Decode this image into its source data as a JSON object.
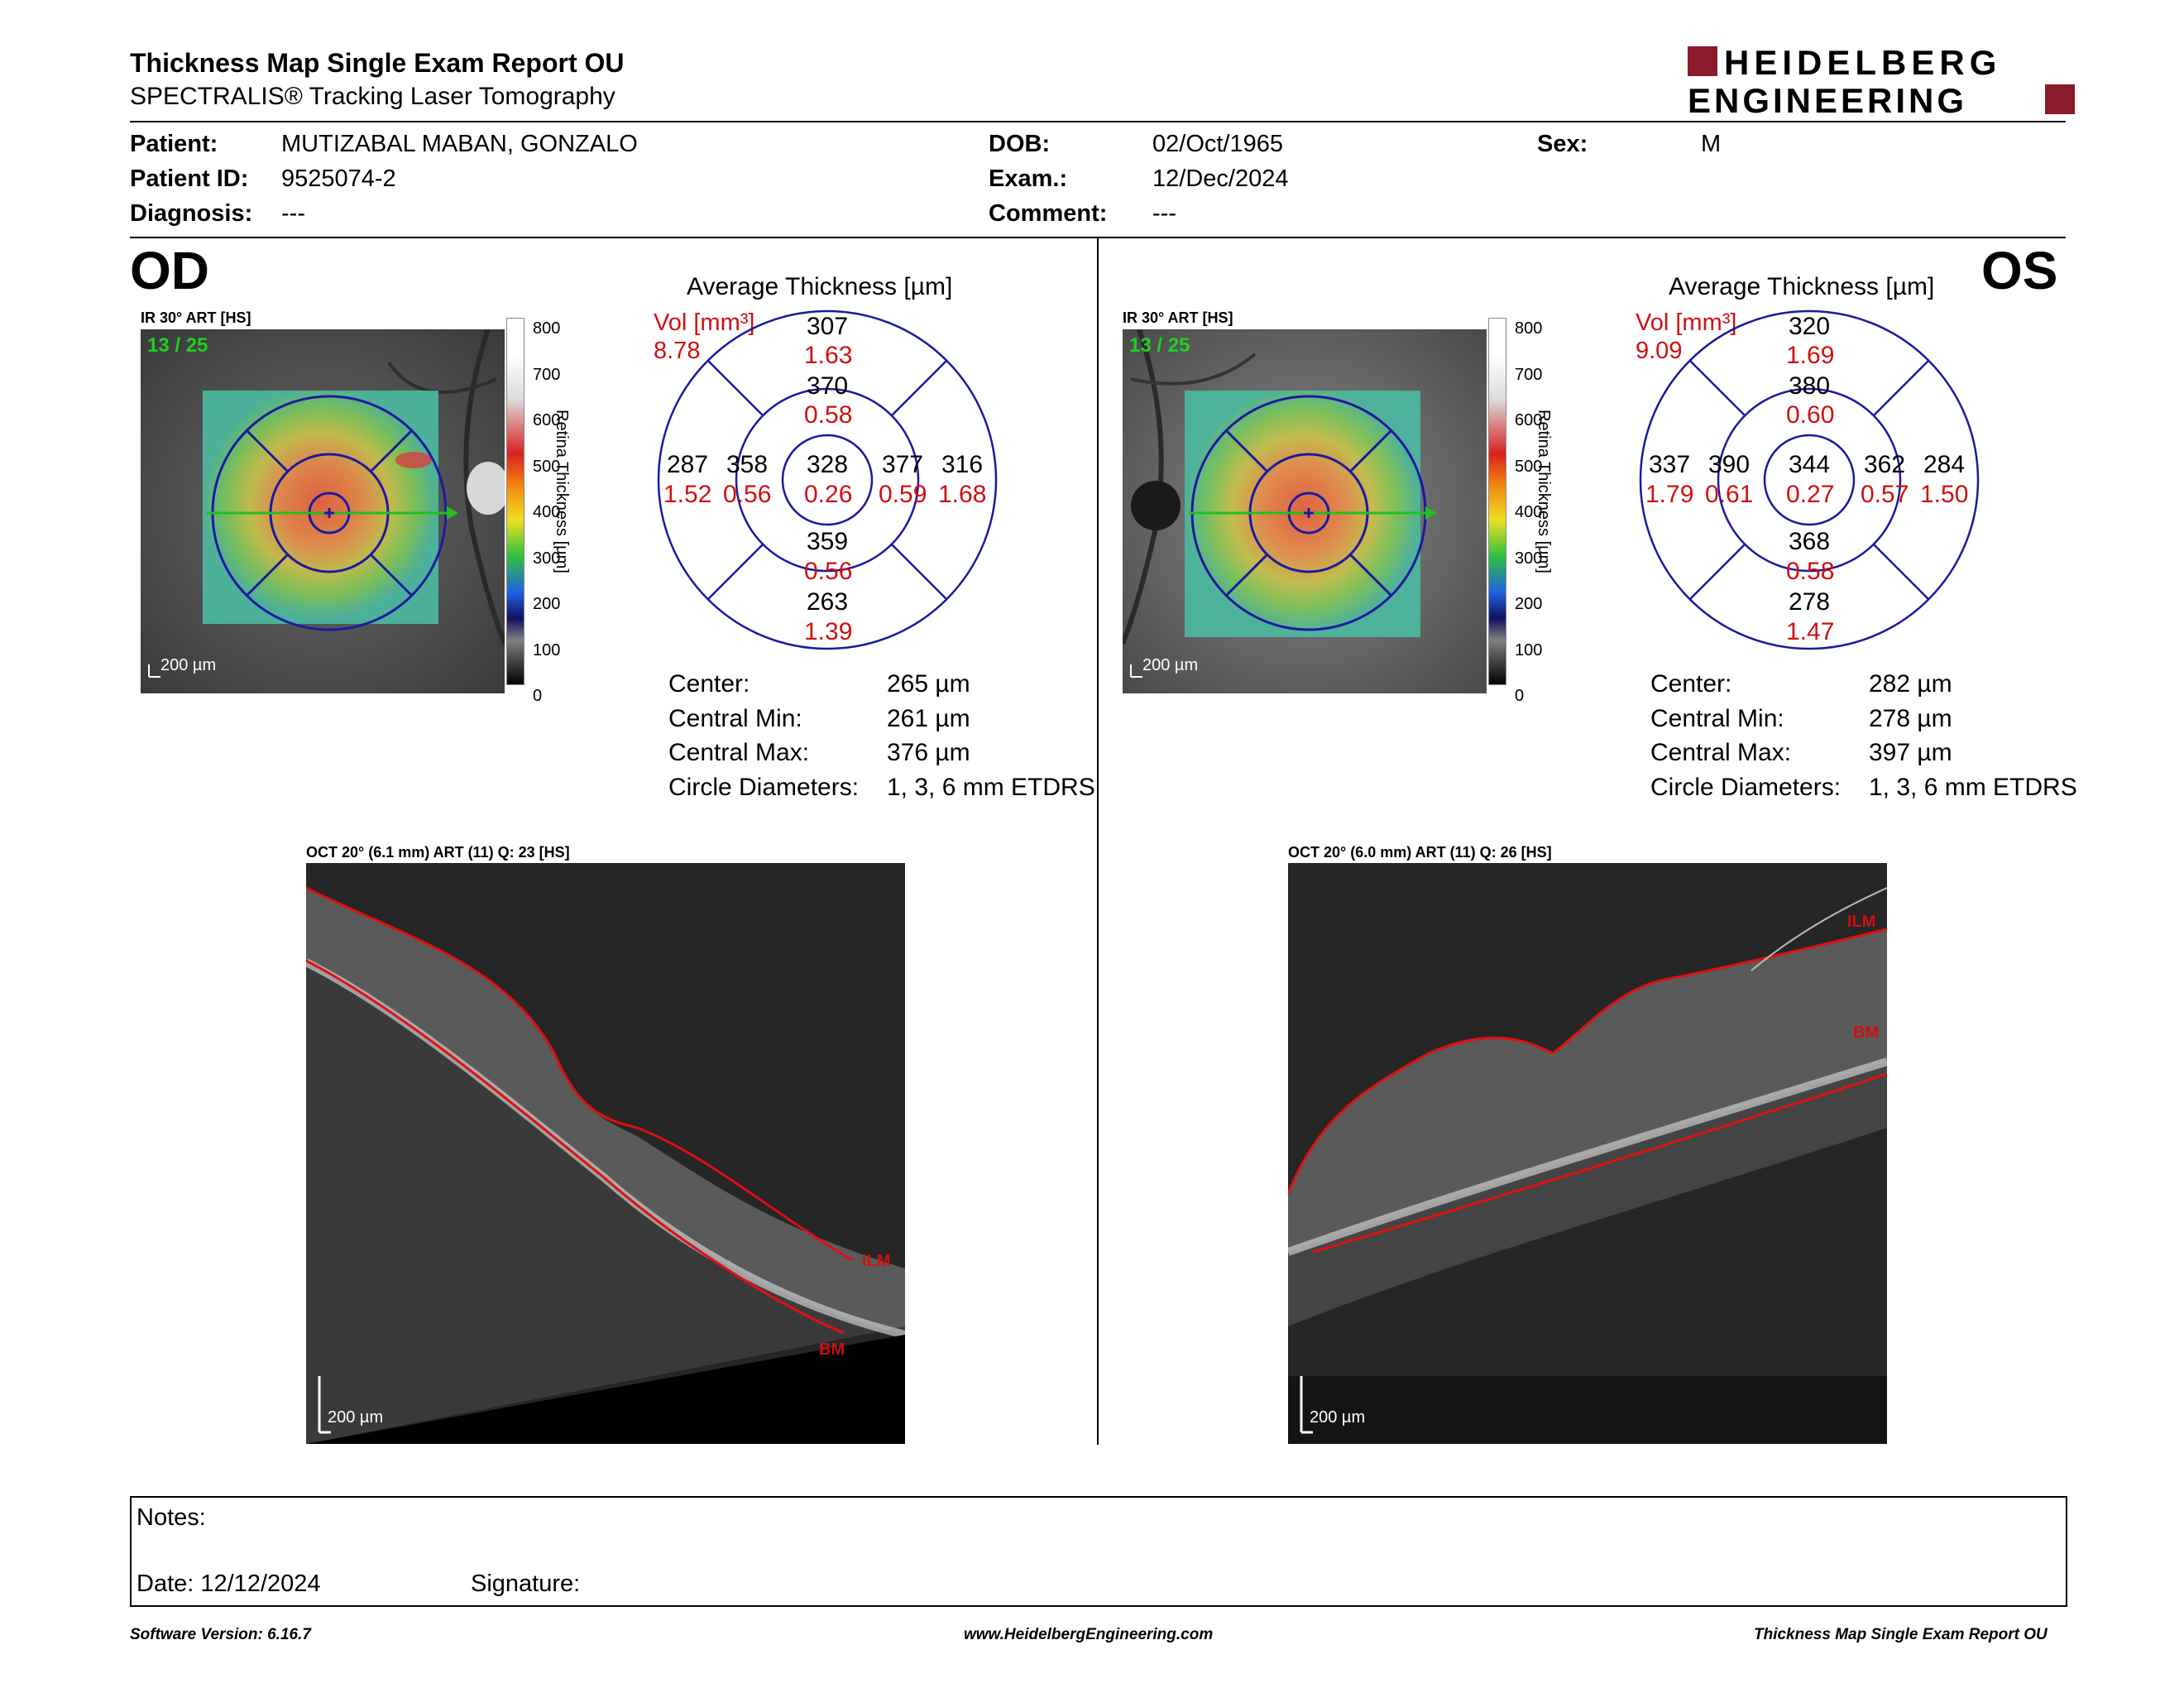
{
  "header": {
    "title": "Thickness Map Single Exam Report OU",
    "subtitle": "SPECTRALIS® Tracking Laser Tomography",
    "logo_line1": "HEIDELBERG",
    "logo_line2": "ENGINEERING",
    "brand_color": "#8b1a2a"
  },
  "patient": {
    "patient_label": "Patient:",
    "patient_value": "MUTIZABAL MABAN, GONZALO",
    "id_label": "Patient ID:",
    "id_value": "9525074-2",
    "diagnosis_label": "Diagnosis:",
    "diagnosis_value": "---",
    "dob_label": "DOB:",
    "dob_value": "02/Oct/1965",
    "exam_label": "Exam.:",
    "exam_value": "12/Dec/2024",
    "comment_label": "Comment:",
    "comment_value": "---",
    "sex_label": "Sex:",
    "sex_value": "M"
  },
  "od": {
    "eye": "OD",
    "ir_label": "IR 30° ART [HS]",
    "frame": "13 / 25",
    "scale": "200 µm",
    "colorbar_ticks": [
      "800",
      "700",
      "600",
      "500",
      "400",
      "300",
      "200",
      "100",
      "0"
    ],
    "colorbar_title": "Retina Thickness [µm]",
    "avg_title": "Average Thickness [µm]",
    "vol_label": "Vol [mm³]",
    "vol_value": "8.78",
    "sectors": {
      "outer_top": {
        "t": "307",
        "v": "1.63"
      },
      "inner_top": {
        "t": "370",
        "v": "0.58"
      },
      "outer_left": {
        "t": "287",
        "v": "1.52"
      },
      "inner_left": {
        "t": "358",
        "v": "0.56"
      },
      "center": {
        "t": "328",
        "v": "0.26"
      },
      "inner_right": {
        "t": "377",
        "v": "0.59"
      },
      "outer_right": {
        "t": "316",
        "v": "1.68"
      },
      "inner_bottom": {
        "t": "359",
        "v": "0.56"
      },
      "outer_bottom": {
        "t": "263",
        "v": "1.39"
      }
    },
    "stats": [
      {
        "label": "Center:",
        "value": "265 µm"
      },
      {
        "label": "Central Min:",
        "value": "261 µm"
      },
      {
        "label": "Central Max:",
        "value": "376 µm"
      },
      {
        "label": "Circle Diameters:",
        "value": "1, 3, 6 mm ETDRS"
      }
    ],
    "oct_label": "OCT 20° (6.1 mm) ART (11) Q: 23 [HS]",
    "oct_scale": "200 µm",
    "ilm": "ILM",
    "bm": "BM"
  },
  "os": {
    "eye": "OS",
    "ir_label": "IR 30° ART [HS]",
    "frame": "13 / 25",
    "scale": "200 µm",
    "colorbar_ticks": [
      "800",
      "700",
      "600",
      "500",
      "400",
      "300",
      "200",
      "100",
      "0"
    ],
    "colorbar_title": "Retina Thickness [µm]",
    "avg_title": "Average Thickness [µm]",
    "vol_label": "Vol [mm³]",
    "vol_value": "9.09",
    "sectors": {
      "outer_top": {
        "t": "320",
        "v": "1.69"
      },
      "inner_top": {
        "t": "380",
        "v": "0.60"
      },
      "outer_left": {
        "t": "337",
        "v": "1.79"
      },
      "inner_left": {
        "t": "390",
        "v": "0.61"
      },
      "center": {
        "t": "344",
        "v": "0.27"
      },
      "inner_right": {
        "t": "362",
        "v": "0.57"
      },
      "outer_right": {
        "t": "284",
        "v": "1.50"
      },
      "inner_bottom": {
        "t": "368",
        "v": "0.58"
      },
      "outer_bottom": {
        "t": "278",
        "v": "1.47"
      }
    },
    "stats": [
      {
        "label": "Center:",
        "value": "282 µm"
      },
      {
        "label": "Central Min:",
        "value": "278 µm"
      },
      {
        "label": "Central Max:",
        "value": "397 µm"
      },
      {
        "label": "Circle Diameters:",
        "value": "1, 3, 6 mm ETDRS"
      }
    ],
    "oct_label": "OCT 20° (6.0 mm) ART (11) Q: 26 [HS]",
    "oct_scale": "200 µm",
    "ilm": "ILM",
    "bm": "BM"
  },
  "notes": {
    "notes_label": "Notes:",
    "date_label": "Date: 12/12/2024",
    "signature_label": "Signature:"
  },
  "footer": {
    "software": "Software Version: 6.16.7",
    "website": "www.HeidelbergEngineering.com",
    "report": "Thickness Map Single Exam Report OU"
  }
}
